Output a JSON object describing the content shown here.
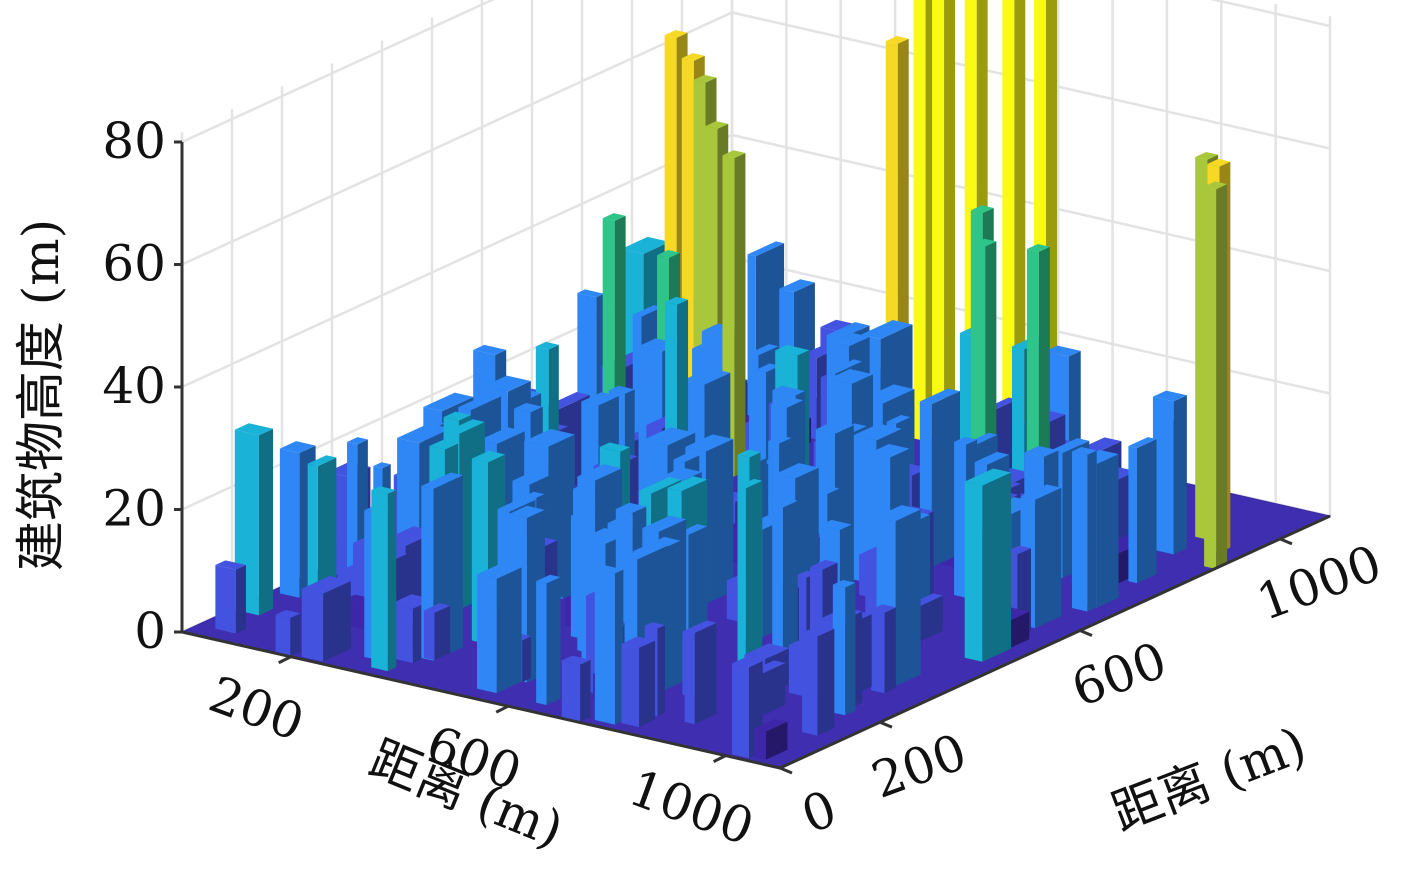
{
  "chart_data": {
    "type": "surface3d",
    "title": "",
    "zlabel": "建筑物高度 (m)",
    "xlabel": "距离 (m)",
    "ylabel": "距离 (m)",
    "zlim": [
      0,
      80
    ],
    "xlim": [
      0,
      1100
    ],
    "ylim": [
      0,
      1100
    ],
    "z_ticks": [
      "0",
      "20",
      "40",
      "60",
      "80"
    ],
    "x_ticks": [
      "200",
      "600",
      "1000"
    ],
    "y_ticks": [
      "0",
      "200",
      "600",
      "1000"
    ],
    "grid": true,
    "colormap": [
      "#3e26a8",
      "#4353e0",
      "#2f87f5",
      "#1ab2d6",
      "#2ec48a",
      "#a9c73a",
      "#f5d925",
      "#f9fb15"
    ],
    "towers": [
      {
        "x": 60,
        "y": 900,
        "height": 65
      },
      {
        "x": 110,
        "y": 880,
        "height": 63
      },
      {
        "x": 150,
        "y": 860,
        "height": 61
      },
      {
        "x": 190,
        "y": 840,
        "height": 55
      },
      {
        "x": 240,
        "y": 820,
        "height": 52
      },
      {
        "x": 130,
        "y": 700,
        "height": 44
      },
      {
        "x": 230,
        "y": 700,
        "height": 40
      },
      {
        "x": 300,
        "y": 640,
        "height": 36
      },
      {
        "x": 700,
        "y": 350,
        "height": 30
      },
      {
        "x": 380,
        "y": 1050,
        "height": 83
      },
      {
        "x": 460,
        "y": 1000,
        "height": 78
      },
      {
        "x": 520,
        "y": 1000,
        "height": 80
      },
      {
        "x": 580,
        "y": 1010,
        "height": 78
      },
      {
        "x": 620,
        "y": 1030,
        "height": 82
      },
      {
        "x": 430,
        "y": 940,
        "height": 70
      },
      {
        "x": 660,
        "y": 860,
        "height": 50
      },
      {
        "x": 720,
        "y": 800,
        "height": 48
      },
      {
        "x": 800,
        "y": 820,
        "height": 48
      },
      {
        "x": 990,
        "y": 950,
        "height": 62
      },
      {
        "x": 1040,
        "y": 920,
        "height": 63
      },
      {
        "x": 1080,
        "y": 870,
        "height": 62
      },
      {
        "x": 850,
        "y": 620,
        "height": 25
      },
      {
        "x": 780,
        "y": 340,
        "height": 10
      },
      {
        "x": 400,
        "y": 270,
        "height": 12
      }
    ]
  }
}
